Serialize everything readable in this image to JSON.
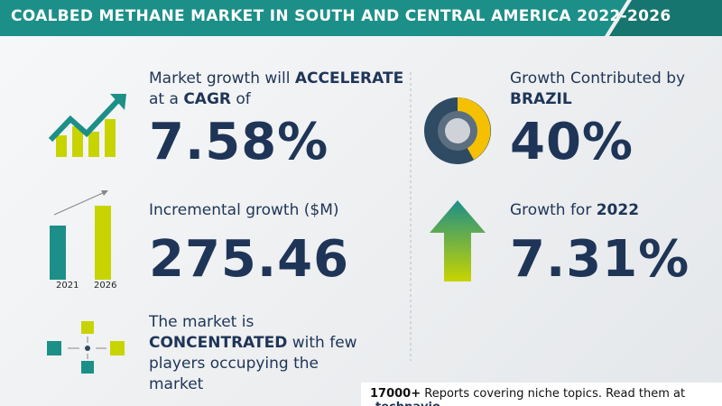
{
  "header": {
    "title": "COALBED METHANE MARKET IN SOUTH AND CENTRAL AMERICA 2022-2026"
  },
  "growth": {
    "line1_prefix": "Market growth will",
    "line1_emph": "ACCELERATE",
    "line2_prefix": "at a",
    "line2_emph": "CAGR",
    "line2_suffix": "of",
    "value": "7.58%"
  },
  "incremental": {
    "label": "Incremental growth ($M)",
    "value": "275.46",
    "years": [
      "2021",
      "2026"
    ]
  },
  "concentration": {
    "prefix": "The market is",
    "emph": "CONCENTRATED",
    "rest": "with few players occupying the market"
  },
  "contribution": {
    "label": "Growth Contributed by",
    "region": "BRAZIL",
    "value": "40%"
  },
  "yoy": {
    "label": "Growth for",
    "year": "2022",
    "value": "7.31%"
  },
  "footer": {
    "count": "17000+",
    "text": "Reports covering niche topics. Read them at",
    "brand": "technavio"
  }
}
